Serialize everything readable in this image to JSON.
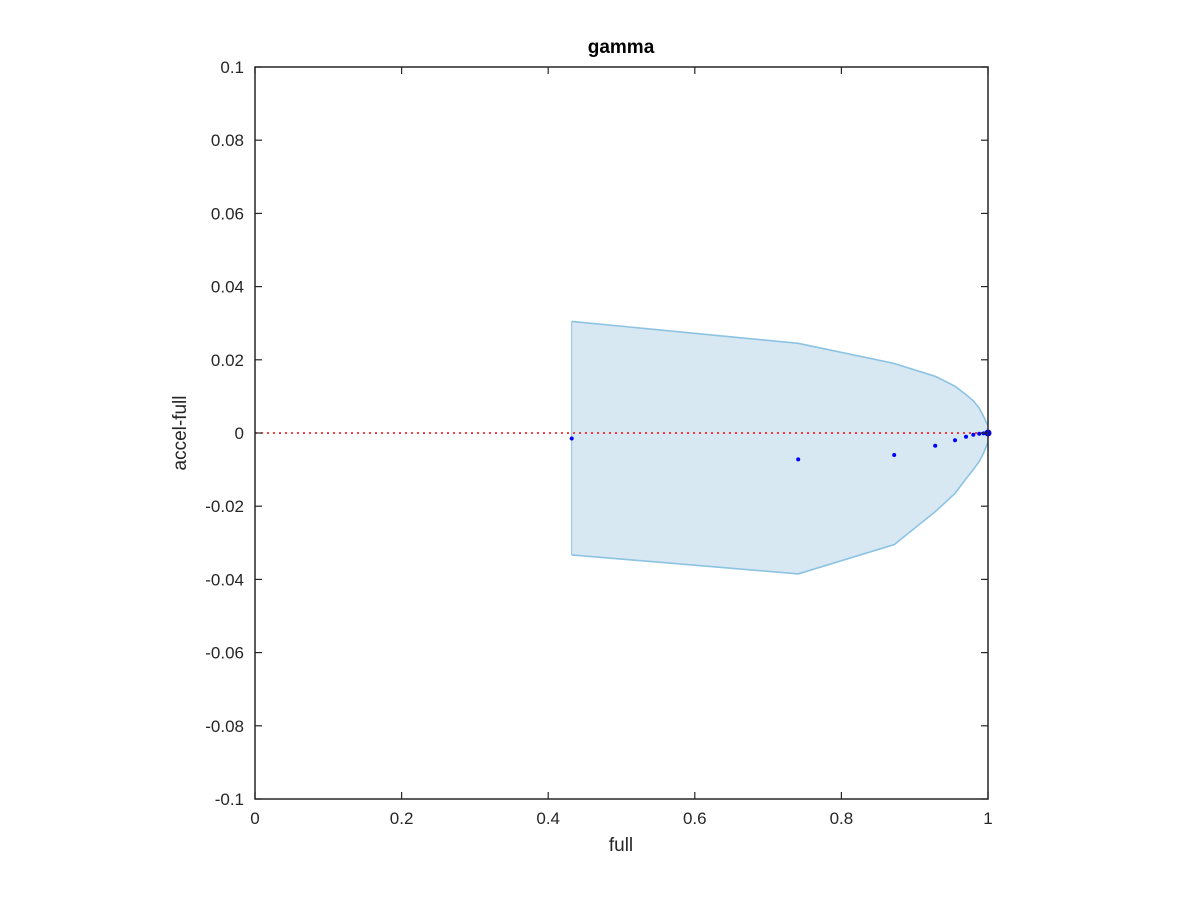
{
  "chart_data": {
    "type": "scatter",
    "title": "gamma",
    "xlabel": "full",
    "ylabel": "accel-full",
    "xlim": [
      0,
      1
    ],
    "ylim": [
      -0.1,
      0.1
    ],
    "xticks": [
      0,
      0.2,
      0.4,
      0.6,
      0.8,
      1
    ],
    "xtick_labels": [
      "0",
      "0.2",
      "0.4",
      "0.6",
      "0.8",
      "1"
    ],
    "yticks": [
      0.1,
      0.08,
      0.06,
      0.04,
      0.02,
      0,
      -0.02,
      -0.04,
      -0.06,
      -0.08,
      -0.1
    ],
    "ytick_labels": [
      "0.1",
      "0.08",
      "0.06",
      "0.04",
      "0.02",
      "0",
      "-0.02",
      "-0.04",
      "-0.06",
      "-0.08",
      "-0.1"
    ],
    "grid": false,
    "box": true,
    "reference_line": {
      "y": 0,
      "style": "dotted",
      "color": "#ff0000"
    },
    "band": {
      "fill_color": "#d8e8f3",
      "edge_color": "#8cc3e3",
      "upper": [
        [
          0.432,
          0.0305
        ],
        [
          0.741,
          0.0245
        ],
        [
          0.872,
          0.019
        ],
        [
          0.928,
          0.0155
        ],
        [
          0.955,
          0.0128
        ],
        [
          0.97,
          0.0105
        ],
        [
          0.98,
          0.0088
        ],
        [
          0.988,
          0.0068
        ],
        [
          0.994,
          0.0045
        ],
        [
          0.998,
          0.0028
        ],
        [
          1.0,
          0.0022
        ]
      ],
      "lower": [
        [
          0.432,
          -0.0333
        ],
        [
          0.741,
          -0.0385
        ],
        [
          0.872,
          -0.0305
        ],
        [
          0.928,
          -0.0215
        ],
        [
          0.955,
          -0.0165
        ],
        [
          0.97,
          -0.0125
        ],
        [
          0.98,
          -0.01
        ],
        [
          0.988,
          -0.0078
        ],
        [
          0.994,
          -0.0055
        ],
        [
          0.998,
          -0.0035
        ],
        [
          1.0,
          -0.0025
        ]
      ]
    },
    "series": [
      {
        "color": "#0000ff",
        "points": [
          [
            0.432,
            -0.0015
          ],
          [
            0.741,
            -0.0072
          ],
          [
            0.872,
            -0.006
          ],
          [
            0.928,
            -0.0035
          ],
          [
            0.955,
            -0.002
          ],
          [
            0.97,
            -0.001
          ],
          [
            0.98,
            -0.0005
          ],
          [
            0.988,
            -0.0002
          ],
          [
            0.994,
            -0.0001
          ],
          [
            0.998,
            0.0
          ],
          [
            0.9995,
            0.0
          ],
          [
            1.0,
            0.0
          ]
        ]
      }
    ]
  }
}
